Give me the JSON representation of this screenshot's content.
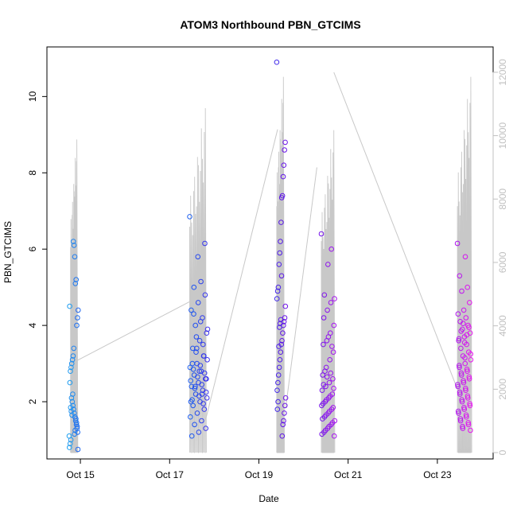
{
  "chart_data": {
    "type": "scatter",
    "title": "ATOM3 Northbound PBN_GTCIMS",
    "xlabel": "Date",
    "ylabel": "PBN_GTCIMS",
    "x_ticks": [
      "Oct 15",
      "Oct 17",
      "Oct 19",
      "Oct 21",
      "Oct 23"
    ],
    "x_tick_values": [
      15,
      17,
      19,
      21,
      23
    ],
    "xlim": [
      14.25,
      24.25
    ],
    "ylim": [
      0.5,
      11.3
    ],
    "y_ticks": [
      2,
      4,
      6,
      8,
      10
    ],
    "y2_ticks": [
      0,
      2000,
      4000,
      6000,
      8000,
      10000,
      12000
    ],
    "y2lim": [
      -200,
      12800
    ],
    "color_scale": [
      "#1ea0f0",
      "#1e50f0",
      "#5a14e8",
      "#a014f0",
      "#f014f0"
    ],
    "right_axis_series": {
      "name": "",
      "color": "#c8c8c8",
      "bursts": [
        {
          "x_start": 14.78,
          "x_end": 14.92,
          "max": 10000,
          "min": 0
        },
        {
          "x_start": 17.45,
          "x_end": 17.8,
          "max": 11000,
          "min": 0
        },
        {
          "x_start": 19.4,
          "x_end": 19.55,
          "max": 12000,
          "min": 0
        },
        {
          "x_start": 20.4,
          "x_end": 20.68,
          "max": 10300,
          "min": 0
        },
        {
          "x_start": 23.45,
          "x_end": 23.75,
          "max": 12000,
          "min": 0
        }
      ],
      "connectors": [
        {
          "x1": 14.92,
          "y1": 2900,
          "x2": 17.5,
          "y2": 4800
        },
        {
          "x1": 17.8,
          "y1": 1000,
          "x2": 19.42,
          "y2": 10200
        },
        {
          "x1": 19.6,
          "y1": 1400,
          "x2": 20.3,
          "y2": 9000
        },
        {
          "x1": 20.68,
          "y1": 12000,
          "x2": 23.45,
          "y2": 2000
        }
      ]
    },
    "series": [
      {
        "x_range": [
          14.75,
          14.95
        ],
        "points": [
          1.1,
          1.2,
          1.3,
          1.4,
          1.5,
          1.6,
          1.7,
          1.8,
          1.9,
          2.0,
          2.1,
          1.0,
          0.9,
          0.8,
          0.75,
          1.35,
          1.45,
          1.55,
          1.25,
          1.15,
          3.4,
          3.2,
          3.1,
          3.0,
          2.9,
          2.8,
          4.5,
          4.4,
          4.2,
          4.0,
          5.2,
          5.1,
          5.8,
          6.1,
          6.2,
          2.2,
          1.65,
          1.75,
          1.85,
          2.5
        ]
      },
      {
        "x_range": [
          17.45,
          17.85
        ],
        "points": [
          6.85,
          5.15,
          5.0,
          4.8,
          4.6,
          4.4,
          4.2,
          4.0,
          3.8,
          3.6,
          3.4,
          3.2,
          3.0,
          2.9,
          2.8,
          2.7,
          2.6,
          2.5,
          2.4,
          2.3,
          2.2,
          2.1,
          2.0,
          1.9,
          1.8,
          1.7,
          1.6,
          1.5,
          1.4,
          1.3,
          1.2,
          1.1,
          3.5,
          3.3,
          3.1,
          2.95,
          2.85,
          2.75,
          2.65,
          2.55,
          2.45,
          2.35,
          2.25,
          2.15,
          2.05,
          1.95,
          3.7,
          3.9,
          4.1,
          4.3,
          6.15,
          5.8,
          2.0,
          2.2,
          2.4,
          2.6,
          2.8,
          3.0,
          3.2,
          3.4
        ]
      },
      {
        "x_range": [
          19.4,
          19.6
        ],
        "points": [
          10.9,
          8.8,
          8.6,
          8.2,
          7.9,
          7.4,
          7.35,
          6.7,
          6.2,
          5.9,
          5.6,
          5.0,
          4.9,
          4.7,
          4.5,
          4.2,
          4.1,
          4.0,
          3.8,
          3.6,
          3.5,
          3.3,
          3.1,
          2.9,
          2.7,
          2.5,
          2.3,
          2.1,
          1.9,
          1.7,
          1.5,
          1.4,
          1.1,
          5.3,
          4.15,
          4.05,
          3.95,
          3.45,
          2.0,
          1.8
        ]
      },
      {
        "x_range": [
          20.4,
          20.7
        ],
        "points": [
          6.4,
          6.0,
          5.6,
          4.8,
          4.7,
          4.6,
          4.4,
          4.2,
          4.0,
          3.8,
          3.6,
          3.5,
          3.3,
          3.1,
          2.9,
          2.7,
          2.6,
          2.5,
          2.4,
          2.3,
          2.2,
          2.1,
          2.0,
          1.9,
          1.8,
          1.7,
          1.6,
          1.5,
          1.4,
          1.3,
          1.2,
          1.1,
          2.75,
          2.65,
          2.45,
          2.35,
          2.15,
          2.05,
          1.95,
          1.85,
          1.75,
          1.65,
          1.55,
          1.45,
          1.35,
          1.25,
          1.15,
          3.45,
          3.7,
          2.8
        ]
      },
      {
        "x_range": [
          23.45,
          23.75
        ],
        "points": [
          6.15,
          5.8,
          5.3,
          5.0,
          4.9,
          4.6,
          4.4,
          4.3,
          4.2,
          4.1,
          4.0,
          3.9,
          3.8,
          3.7,
          3.6,
          3.5,
          3.4,
          3.3,
          3.2,
          3.1,
          3.0,
          2.9,
          2.8,
          2.7,
          2.6,
          2.5,
          2.4,
          2.3,
          2.2,
          2.1,
          2.0,
          1.9,
          1.8,
          1.7,
          1.6,
          1.5,
          1.4,
          1.3,
          3.25,
          3.15,
          2.95,
          2.85,
          2.75,
          2.65,
          2.55,
          2.45,
          2.35,
          2.25,
          2.15,
          2.05,
          1.95,
          1.85,
          1.75,
          1.65,
          1.55,
          1.45,
          1.35,
          1.25,
          3.55,
          3.65,
          3.75,
          3.85,
          3.95,
          4.05
        ]
      }
    ]
  }
}
